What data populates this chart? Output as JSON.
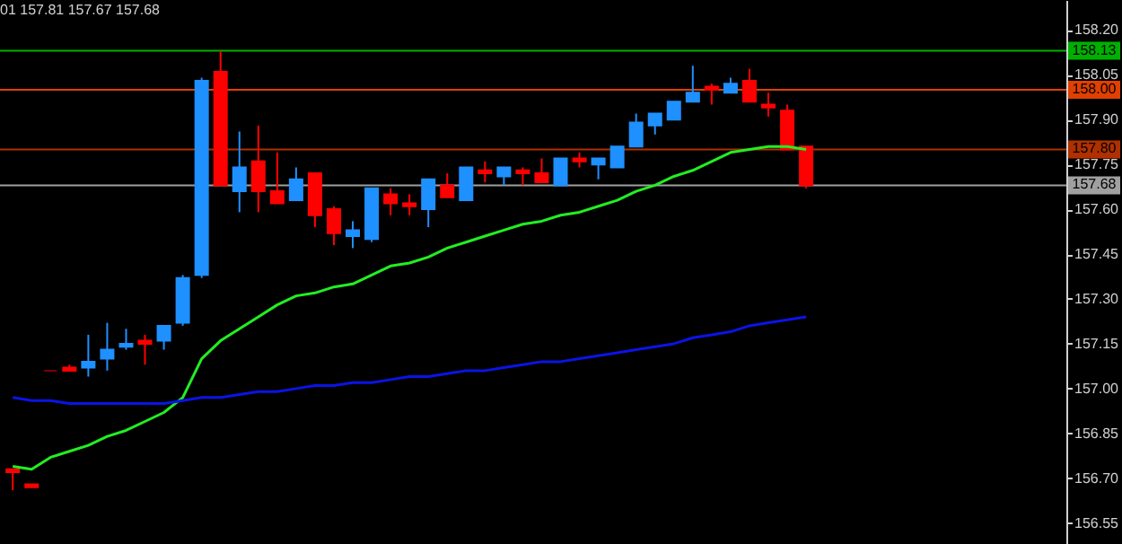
{
  "chart_data": {
    "type": "candlestick",
    "categories": [
      null,
      null,
      null,
      null,
      null,
      null,
      null,
      null,
      null,
      null,
      null,
      null,
      null,
      null,
      null,
      null,
      null,
      null,
      null,
      null,
      null,
      null,
      null,
      null,
      null,
      null,
      null,
      null,
      null,
      null,
      null,
      null,
      null,
      null,
      null,
      null,
      null,
      null,
      null,
      null,
      null,
      null,
      null
    ],
    "ohlc": [
      [
        156.73,
        156.73,
        156.66,
        156.72
      ],
      [
        156.68,
        156.68,
        156.67,
        156.67
      ],
      [
        157.06,
        157.06,
        157.06,
        157.06
      ],
      [
        157.07,
        157.08,
        157.06,
        157.06
      ],
      [
        157.07,
        157.18,
        157.04,
        157.09
      ],
      [
        157.1,
        157.22,
        157.06,
        157.13
      ],
      [
        157.14,
        157.2,
        157.13,
        157.15
      ],
      [
        157.16,
        157.18,
        157.08,
        157.15
      ],
      [
        157.16,
        157.21,
        157.13,
        157.21
      ],
      [
        157.22,
        157.38,
        157.21,
        157.37
      ],
      [
        157.38,
        158.04,
        157.37,
        158.03
      ],
      [
        158.06,
        158.13,
        157.68,
        157.68
      ],
      [
        157.66,
        157.86,
        157.59,
        157.74
      ],
      [
        157.76,
        157.88,
        157.59,
        157.66
      ],
      [
        157.66,
        157.79,
        157.62,
        157.62
      ],
      [
        157.63,
        157.74,
        157.63,
        157.7
      ],
      [
        157.72,
        157.72,
        157.54,
        157.58
      ],
      [
        157.6,
        157.61,
        157.48,
        157.52
      ],
      [
        157.51,
        157.56,
        157.47,
        157.53
      ],
      [
        157.5,
        157.67,
        157.49,
        157.67
      ],
      [
        157.65,
        157.67,
        157.58,
        157.62
      ],
      [
        157.62,
        157.65,
        157.58,
        157.61
      ],
      [
        157.6,
        157.7,
        157.54,
        157.7
      ],
      [
        157.68,
        157.72,
        157.64,
        157.64
      ],
      [
        157.63,
        157.74,
        157.63,
        157.74
      ],
      [
        157.73,
        157.76,
        157.69,
        157.72
      ],
      [
        157.71,
        157.74,
        157.68,
        157.74
      ],
      [
        157.73,
        157.74,
        157.68,
        157.72
      ],
      [
        157.72,
        157.77,
        157.69,
        157.69
      ],
      [
        157.68,
        157.77,
        157.68,
        157.77
      ],
      [
        157.77,
        157.79,
        157.74,
        157.76
      ],
      [
        157.75,
        157.77,
        157.7,
        157.77
      ],
      [
        157.74,
        157.81,
        157.74,
        157.81
      ],
      [
        157.81,
        157.92,
        157.81,
        157.89
      ],
      [
        157.88,
        157.92,
        157.85,
        157.92
      ],
      [
        157.9,
        157.96,
        157.9,
        157.96
      ],
      [
        157.96,
        158.08,
        157.96,
        157.99
      ],
      [
        158.01,
        158.02,
        157.95,
        158.0
      ],
      [
        157.99,
        158.04,
        157.99,
        158.02
      ],
      [
        158.03,
        158.07,
        157.96,
        157.96
      ],
      [
        157.95,
        157.99,
        157.91,
        157.94
      ],
      [
        157.93,
        157.95,
        157.8,
        157.8
      ],
      [
        157.81,
        157.81,
        157.67,
        157.68
      ]
    ],
    "colors": [
      "#ff0000",
      "#ff0000",
      "#800000",
      "#ff0000",
      "#1e90ff",
      "#1e90ff",
      "#1e90ff",
      "#ff0000",
      "#1e90ff",
      "#1e90ff",
      "#1e90ff",
      "#ff0000",
      "#1e90ff",
      "#ff0000",
      "#ff0000",
      "#1e90ff",
      "#ff0000",
      "#ff0000",
      "#1e90ff",
      "#1e90ff",
      "#ff0000",
      "#ff0000",
      "#1e90ff",
      "#ff0000",
      "#1e90ff",
      "#ff0000",
      "#1e90ff",
      "#ff0000",
      "#ff0000",
      "#1e90ff",
      "#ff0000",
      "#1e90ff",
      "#1e90ff",
      "#1e90ff",
      "#1e90ff",
      "#1e90ff",
      "#1e90ff",
      "#ff0000",
      "#1e90ff",
      "#ff0000",
      "#ff0000",
      "#ff0000",
      "#ff0000"
    ],
    "series": [
      {
        "type": "line",
        "color": "#22ee22",
        "values": [
          156.74,
          156.73,
          156.77,
          156.79,
          156.81,
          156.84,
          156.86,
          156.89,
          156.92,
          156.97,
          157.1,
          157.16,
          157.2,
          157.24,
          157.28,
          157.31,
          157.32,
          157.34,
          157.35,
          157.38,
          157.41,
          157.42,
          157.44,
          157.47,
          157.49,
          157.51,
          157.53,
          157.55,
          157.56,
          157.58,
          157.59,
          157.61,
          157.63,
          157.66,
          157.68,
          157.71,
          157.73,
          157.76,
          157.79,
          157.8,
          157.81,
          157.81,
          157.8
        ]
      },
      {
        "type": "line",
        "color": "#0a14e6",
        "values": [
          156.97,
          156.96,
          156.96,
          156.95,
          156.95,
          156.95,
          156.95,
          156.95,
          156.95,
          156.96,
          156.97,
          156.97,
          156.98,
          156.99,
          156.99,
          157.0,
          157.01,
          157.01,
          157.02,
          157.02,
          157.03,
          157.04,
          157.04,
          157.05,
          157.06,
          157.06,
          157.07,
          157.08,
          157.09,
          157.09,
          157.1,
          157.11,
          157.12,
          157.13,
          157.14,
          157.15,
          157.17,
          157.18,
          157.19,
          157.21,
          157.22,
          157.23,
          157.24
        ]
      }
    ],
    "ylim": [
      156.48,
      158.3
    ],
    "yticks": [
      {
        "value": 156.55,
        "label": "156.55"
      },
      {
        "value": 156.7,
        "label": "156.70"
      },
      {
        "value": 156.85,
        "label": "156.85"
      },
      {
        "value": 157.0,
        "label": "157.00"
      },
      {
        "value": 157.15,
        "label": "157.15"
      },
      {
        "value": 157.3,
        "label": "157.30"
      },
      {
        "value": 157.45,
        "label": "157.45"
      },
      {
        "value": 157.6,
        "label": "157.60"
      },
      {
        "value": 157.75,
        "label": "157.75"
      },
      {
        "value": 157.9,
        "label": "157.90"
      },
      {
        "value": 158.05,
        "label": "158.05"
      },
      {
        "value": 158.2,
        "label": "158.20"
      }
    ],
    "ref_lines": [
      {
        "axis": "y",
        "value": 158.13,
        "label": "158.13",
        "color": "#00b000"
      },
      {
        "axis": "y",
        "value": 158.0,
        "label": "158.00",
        "color": "#e04000"
      },
      {
        "axis": "y",
        "value": 157.8,
        "label": "157.80",
        "color": "#b03000"
      },
      {
        "axis": "y",
        "value": 157.68,
        "label": "157.68",
        "color": "#a0a0a0"
      }
    ],
    "annotations": [
      "01 157.81 157.67 157.68"
    ],
    "tick_labels": "y",
    "grid": false
  }
}
